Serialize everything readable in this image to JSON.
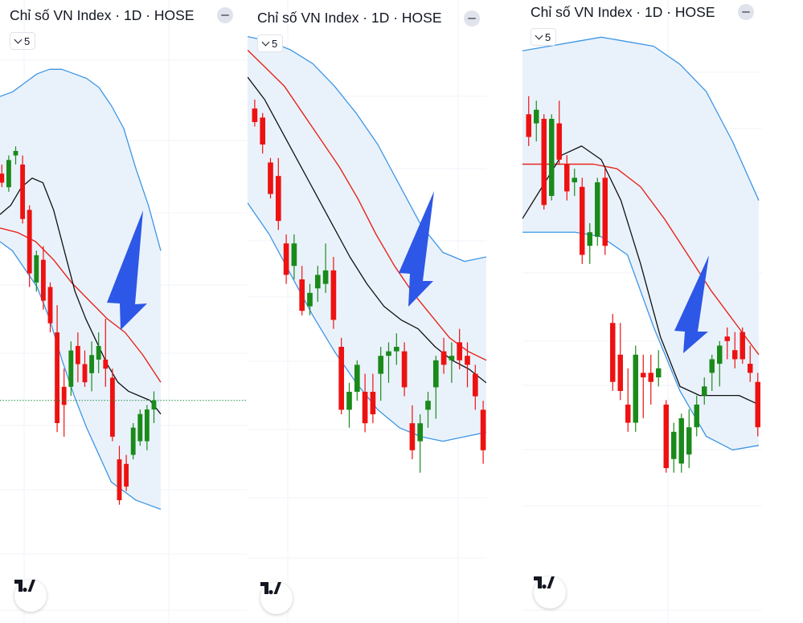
{
  "colors": {
    "up": "#1a8a1a",
    "down": "#ee1111",
    "band": "#3d96e6",
    "band_fill": "#e9f2fb",
    "sma": "#111111",
    "mid": "#e8241a",
    "arrow": "#2d57e6",
    "grid": "#f0f3fa",
    "price_line": "#1f8a3a"
  },
  "icons": [
    "minus-icon",
    "chevron-down-icon",
    "tradingview-logo-icon",
    "arrow-down-icon"
  ],
  "panels": [
    {
      "title": "Chỉ số VN Index · 1D · HOSE",
      "interval": "5"
    },
    {
      "title": "Chỉ số VN Index · 1D · HOSE",
      "interval": "5"
    },
    {
      "title": "Chỉ số VN Index · 1D · HOSE",
      "interval": "5"
    }
  ],
  "chart_data": [
    {
      "type": "candlestick",
      "title": "Chỉ số VN Index · 1D · HOSE",
      "interval": "5",
      "overlays": [
        "Bollinger Bands",
        "SMA"
      ],
      "ylim": [
        0,
        100
      ],
      "candles": [
        {
          "o": 75,
          "h": 77,
          "l": 72,
          "c": 73
        },
        {
          "o": 72,
          "h": 79,
          "l": 71,
          "c": 78
        },
        {
          "o": 79,
          "h": 81,
          "l": 77,
          "c": 80
        },
        {
          "o": 77,
          "h": 79,
          "l": 64,
          "c": 65
        },
        {
          "o": 67,
          "h": 68,
          "l": 50,
          "c": 53
        },
        {
          "o": 51,
          "h": 58,
          "l": 49,
          "c": 57
        },
        {
          "o": 56,
          "h": 59,
          "l": 45,
          "c": 47
        },
        {
          "o": 50,
          "h": 51,
          "l": 40,
          "c": 42
        },
        {
          "o": 40,
          "h": 46,
          "l": 18,
          "c": 20
        },
        {
          "o": 28,
          "h": 32,
          "l": 17,
          "c": 24
        },
        {
          "o": 28,
          "h": 38,
          "l": 26,
          "c": 36
        },
        {
          "o": 37,
          "h": 40,
          "l": 29,
          "c": 33
        },
        {
          "o": 33,
          "h": 36,
          "l": 28,
          "c": 29
        },
        {
          "o": 31,
          "h": 38,
          "l": 27,
          "c": 35
        },
        {
          "o": 34,
          "h": 40,
          "l": 31,
          "c": 37
        },
        {
          "o": 34,
          "h": 43,
          "l": 28,
          "c": 32
        },
        {
          "o": 30,
          "h": 32,
          "l": 16,
          "c": 17
        },
        {
          "o": 12,
          "h": 15,
          "l": 2,
          "c": 3
        },
        {
          "o": 11,
          "h": 13,
          "l": 5,
          "c": 6
        },
        {
          "o": 13,
          "h": 20,
          "l": 12,
          "c": 19
        },
        {
          "o": 16,
          "h": 23,
          "l": 15,
          "c": 22
        },
        {
          "o": 16,
          "h": 24,
          "l": 14,
          "c": 23
        },
        {
          "o": 23,
          "h": 27,
          "l": 20,
          "c": 25
        }
      ],
      "upper_band": [
        92,
        93,
        95,
        97,
        98,
        98,
        97,
        96,
        94,
        90,
        85,
        76,
        68,
        58
      ],
      "lower_band": [
        60,
        58,
        54,
        50,
        43,
        34,
        26,
        19,
        13,
        7,
        5,
        3,
        2,
        1
      ],
      "sma": [
        66,
        68,
        72,
        74,
        73,
        67,
        58,
        49,
        43,
        38,
        33,
        29,
        27,
        26,
        25,
        22
      ],
      "mid_line": [
        63,
        62,
        60,
        56,
        51,
        47,
        43,
        40,
        35,
        29
      ],
      "last_price": 25
    },
    {
      "type": "candlestick",
      "title": "Chỉ số VN Index · 1D · HOSE",
      "interval": "5",
      "overlays": [
        "Bollinger Bands",
        "SMA"
      ],
      "ylim": [
        0,
        100
      ],
      "candles": [
        {
          "o": 83,
          "h": 85,
          "l": 79,
          "c": 80
        },
        {
          "o": 81,
          "h": 82,
          "l": 73,
          "c": 75
        },
        {
          "o": 71,
          "h": 72,
          "l": 63,
          "c": 64
        },
        {
          "o": 68,
          "h": 72,
          "l": 56,
          "c": 58
        },
        {
          "o": 53,
          "h": 55,
          "l": 44,
          "c": 46
        },
        {
          "o": 48,
          "h": 55,
          "l": 45,
          "c": 53
        },
        {
          "o": 45,
          "h": 48,
          "l": 37,
          "c": 38
        },
        {
          "o": 39,
          "h": 44,
          "l": 37,
          "c": 42
        },
        {
          "o": 43,
          "h": 48,
          "l": 40,
          "c": 46
        },
        {
          "o": 44,
          "h": 53,
          "l": 42,
          "c": 47
        },
        {
          "o": 47,
          "h": 50,
          "l": 34,
          "c": 36
        },
        {
          "o": 30,
          "h": 32,
          "l": 15,
          "c": 16
        },
        {
          "o": 16,
          "h": 22,
          "l": 12,
          "c": 20
        },
        {
          "o": 20,
          "h": 27,
          "l": 18,
          "c": 26
        },
        {
          "o": 20,
          "h": 24,
          "l": 11,
          "c": 13
        },
        {
          "o": 20,
          "h": 24,
          "l": 13,
          "c": 15
        },
        {
          "o": 24,
          "h": 30,
          "l": 18,
          "c": 28
        },
        {
          "o": 28,
          "h": 31,
          "l": 22,
          "c": 29
        },
        {
          "o": 29,
          "h": 33,
          "l": 26,
          "c": 30
        },
        {
          "o": 29,
          "h": 31,
          "l": 19,
          "c": 21
        },
        {
          "o": 13,
          "h": 17,
          "l": 5,
          "c": 7
        },
        {
          "o": 9,
          "h": 15,
          "l": 2,
          "c": 13
        },
        {
          "o": 16,
          "h": 20,
          "l": 12,
          "c": 18
        },
        {
          "o": 21,
          "h": 28,
          "l": 14,
          "c": 27
        },
        {
          "o": 29,
          "h": 32,
          "l": 24,
          "c": 26
        },
        {
          "o": 27,
          "h": 31,
          "l": 22,
          "c": 28
        },
        {
          "o": 31,
          "h": 34,
          "l": 25,
          "c": 27
        },
        {
          "o": 28,
          "h": 31,
          "l": 21,
          "c": 26
        },
        {
          "o": 24,
          "h": 26,
          "l": 16,
          "c": 19
        },
        {
          "o": 16,
          "h": 18,
          "l": 4,
          "c": 7
        }
      ],
      "upper_band": [
        99,
        98,
        96,
        93,
        88,
        82,
        75,
        66,
        57,
        51,
        49,
        50
      ],
      "lower_band": [
        62,
        55,
        46,
        37,
        29,
        22,
        16,
        12,
        10,
        9,
        10,
        11
      ],
      "sma": [
        90,
        85,
        78,
        71,
        64,
        57,
        50,
        44,
        39,
        36,
        34,
        30,
        27,
        25,
        22
      ],
      "mid_line": [
        96,
        92,
        88,
        82,
        76,
        70,
        63,
        55,
        48,
        42,
        37,
        32,
        29,
        27
      ],
      "last_price": 7
    },
    {
      "type": "candlestick",
      "title": "Chỉ số VN Index · 1D · HOSE",
      "interval": "5",
      "overlays": [
        "Bollinger Bands",
        "SMA"
      ],
      "ylim": [
        0,
        100
      ],
      "candles": [
        {
          "o": 81,
          "h": 85,
          "l": 74,
          "c": 76
        },
        {
          "o": 79,
          "h": 84,
          "l": 75,
          "c": 82
        },
        {
          "o": 80,
          "h": 81,
          "l": 60,
          "c": 61
        },
        {
          "o": 63,
          "h": 81,
          "l": 62,
          "c": 80
        },
        {
          "o": 79,
          "h": 84,
          "l": 70,
          "c": 71
        },
        {
          "o": 70,
          "h": 72,
          "l": 62,
          "c": 64
        },
        {
          "o": 66,
          "h": 69,
          "l": 63,
          "c": 67
        },
        {
          "o": 65,
          "h": 67,
          "l": 48,
          "c": 50
        },
        {
          "o": 52,
          "h": 57,
          "l": 48,
          "c": 55
        },
        {
          "o": 54,
          "h": 67,
          "l": 52,
          "c": 66
        },
        {
          "o": 67,
          "h": 69,
          "l": 50,
          "c": 52
        },
        {
          "o": 35,
          "h": 37,
          "l": 20,
          "c": 22
        },
        {
          "o": 28,
          "h": 35,
          "l": 18,
          "c": 20
        },
        {
          "o": 17,
          "h": 25,
          "l": 11,
          "c": 13
        },
        {
          "o": 13,
          "h": 30,
          "l": 11,
          "c": 28
        },
        {
          "o": 24,
          "h": 28,
          "l": 14,
          "c": 23
        },
        {
          "o": 24,
          "h": 28,
          "l": 17,
          "c": 22
        },
        {
          "o": 23,
          "h": 29,
          "l": 21,
          "c": 25
        },
        {
          "o": 17,
          "h": 18,
          "l": 2,
          "c": 3
        },
        {
          "o": 5,
          "h": 13,
          "l": 2,
          "c": 11
        },
        {
          "o": 4,
          "h": 15,
          "l": 2,
          "c": 14
        },
        {
          "o": 6,
          "h": 16,
          "l": 3,
          "c": 12
        },
        {
          "o": 12,
          "h": 19,
          "l": 10,
          "c": 17
        },
        {
          "o": 19,
          "h": 23,
          "l": 17,
          "c": 21
        },
        {
          "o": 24,
          "h": 28,
          "l": 20,
          "c": 27
        },
        {
          "o": 26,
          "h": 31,
          "l": 21,
          "c": 30
        },
        {
          "o": 32,
          "h": 34,
          "l": 27,
          "c": 31
        },
        {
          "o": 29,
          "h": 33,
          "l": 25,
          "c": 27
        },
        {
          "o": 33,
          "h": 34,
          "l": 26,
          "c": 27
        },
        {
          "o": 26,
          "h": 30,
          "l": 22,
          "c": 24
        },
        {
          "o": 22,
          "h": 24,
          "l": 10,
          "c": 12
        }
      ],
      "upper_band": [
        95,
        96,
        97,
        98,
        97,
        96,
        92,
        86,
        75,
        62
      ],
      "lower_band": [
        55,
        55,
        55,
        54,
        50,
        34,
        20,
        10,
        7,
        8
      ],
      "sma": [
        58,
        65,
        72,
        74,
        71,
        62,
        48,
        32,
        21,
        19,
        19,
        19,
        17
      ],
      "mid_line": [
        70,
        70,
        70,
        70,
        69,
        65,
        58,
        50,
        42,
        35,
        28
      ],
      "last_price": 12
    }
  ]
}
